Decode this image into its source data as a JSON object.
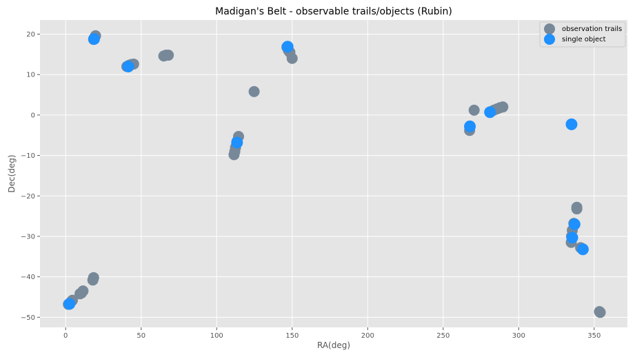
{
  "chart_data": {
    "type": "scatter",
    "title": "Madigan's Belt - observable trails/objects (Rubin)",
    "xlabel": "RA(deg)",
    "ylabel": "Dec(deg)",
    "xlim": [
      -17,
      372
    ],
    "ylim": [
      -52.5,
      23.5
    ],
    "x_ticks": [
      0,
      50,
      100,
      150,
      200,
      250,
      300,
      350
    ],
    "y_ticks": [
      20,
      10,
      0,
      -10,
      -20,
      -30,
      -40,
      -50
    ],
    "y_tick_labels": [
      "20",
      "10",
      "0",
      "−10",
      "−20",
      "−30",
      "−40",
      "−50"
    ],
    "grid": true,
    "legend_position": "top-right",
    "series": [
      {
        "name": "observation trails",
        "color": "#778899",
        "points": [
          {
            "x": 18.5,
            "y": 18.7
          },
          {
            "x": 19.2,
            "y": 19.2
          },
          {
            "x": 19.8,
            "y": 19.6
          },
          {
            "x": 40.5,
            "y": 12.0
          },
          {
            "x": 42.0,
            "y": 12.3
          },
          {
            "x": 43.5,
            "y": 12.5
          },
          {
            "x": 45.0,
            "y": 12.6
          },
          {
            "x": 65.0,
            "y": 14.6
          },
          {
            "x": 66.5,
            "y": 14.8
          },
          {
            "x": 68.0,
            "y": 14.8
          },
          {
            "x": 146.5,
            "y": 16.8
          },
          {
            "x": 147.5,
            "y": 16.0
          },
          {
            "x": 148.5,
            "y": 15.5
          },
          {
            "x": 150.0,
            "y": 14.0
          },
          {
            "x": 124.8,
            "y": 5.8
          },
          {
            "x": 111.5,
            "y": -9.8
          },
          {
            "x": 112.0,
            "y": -9.0
          },
          {
            "x": 112.5,
            "y": -8.0
          },
          {
            "x": 113.5,
            "y": -6.5
          },
          {
            "x": 114.5,
            "y": -5.3
          },
          {
            "x": 267.5,
            "y": -3.8
          },
          {
            "x": 270.5,
            "y": 1.2
          },
          {
            "x": 283.5,
            "y": 1.2
          },
          {
            "x": 285.5,
            "y": 1.5
          },
          {
            "x": 287.5,
            "y": 1.8
          },
          {
            "x": 289.5,
            "y": 2.0
          },
          {
            "x": 338.5,
            "y": -22.8
          },
          {
            "x": 338.5,
            "y": -23.2
          },
          {
            "x": 336.5,
            "y": -26.8
          },
          {
            "x": 335.5,
            "y": -28.5
          },
          {
            "x": 335.0,
            "y": -30.0
          },
          {
            "x": 334.8,
            "y": -31.5
          },
          {
            "x": 341.0,
            "y": -32.8
          },
          {
            "x": 342.0,
            "y": -33.0
          },
          {
            "x": 353.5,
            "y": -48.6
          },
          {
            "x": 354.0,
            "y": -48.8
          },
          {
            "x": 18.5,
            "y": -40.2
          },
          {
            "x": 18.0,
            "y": -40.8
          },
          {
            "x": 11.5,
            "y": -43.5
          },
          {
            "x": 10.5,
            "y": -44.0
          },
          {
            "x": 9.5,
            "y": -44.2
          },
          {
            "x": 4.5,
            "y": -45.8
          },
          {
            "x": 3.5,
            "y": -46.2
          },
          {
            "x": 2.5,
            "y": -46.6
          },
          {
            "x": 1.8,
            "y": -46.8
          }
        ]
      },
      {
        "name": "single object",
        "color": "#1e90ff",
        "points": [
          {
            "x": 18.8,
            "y": 18.8
          },
          {
            "x": 41.5,
            "y": 12.0
          },
          {
            "x": 147.0,
            "y": 16.9
          },
          {
            "x": 113.5,
            "y": -6.8
          },
          {
            "x": 267.7,
            "y": -2.8
          },
          {
            "x": 281.0,
            "y": 0.7
          },
          {
            "x": 335.0,
            "y": -2.3
          },
          {
            "x": 337.0,
            "y": -27.0
          },
          {
            "x": 335.5,
            "y": -30.3
          },
          {
            "x": 342.5,
            "y": -33.2
          },
          {
            "x": 2.5,
            "y": -46.7
          }
        ]
      }
    ]
  }
}
